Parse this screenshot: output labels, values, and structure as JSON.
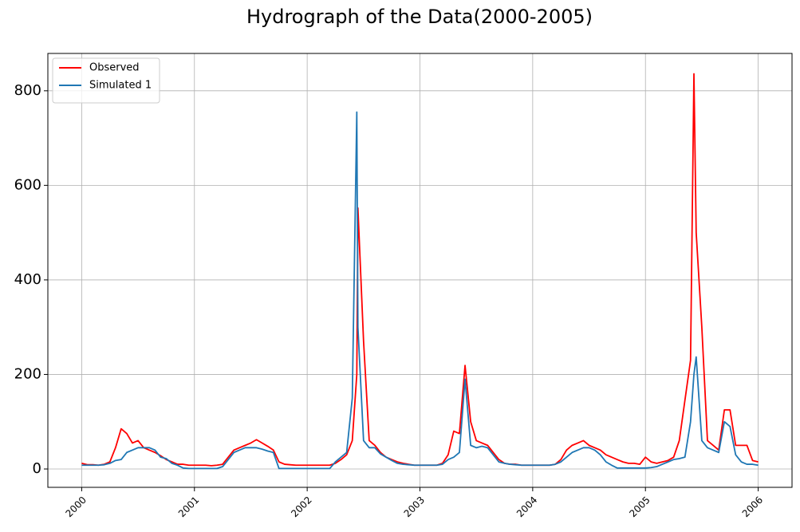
{
  "chart_data": {
    "type": "line",
    "title": "Hydrograph of the Data(2000-2005)",
    "x": [
      2000,
      2000.05,
      2000.1,
      2000.15,
      2000.2,
      2000.25,
      2000.3,
      2000.35,
      2000.4,
      2000.45,
      2000.5,
      2000.55,
      2000.6,
      2000.65,
      2000.7,
      2000.75,
      2000.8,
      2000.85,
      2000.9,
      2000.95,
      2001,
      2001.05,
      2001.1,
      2001.15,
      2001.2,
      2001.25,
      2001.3,
      2001.35,
      2001.4,
      2001.45,
      2001.5,
      2001.55,
      2001.6,
      2001.65,
      2001.7,
      2001.75,
      2001.8,
      2001.85,
      2001.9,
      2001.95,
      2002,
      2002.05,
      2002.1,
      2002.15,
      2002.2,
      2002.25,
      2002.3,
      2002.35,
      2002.4,
      2002.44,
      2002.45,
      2002.5,
      2002.55,
      2002.6,
      2002.65,
      2002.7,
      2002.75,
      2002.8,
      2002.85,
      2002.9,
      2002.95,
      2003,
      2003.05,
      2003.1,
      2003.15,
      2003.2,
      2003.25,
      2003.3,
      2003.35,
      2003.4,
      2003.45,
      2003.5,
      2003.55,
      2003.6,
      2003.65,
      2003.7,
      2003.75,
      2003.8,
      2003.85,
      2003.9,
      2003.95,
      2004,
      2004.05,
      2004.1,
      2004.15,
      2004.2,
      2004.25,
      2004.3,
      2004.35,
      2004.4,
      2004.45,
      2004.5,
      2004.55,
      2004.6,
      2004.65,
      2004.7,
      2004.75,
      2004.8,
      2004.85,
      2004.9,
      2004.95,
      2005,
      2005.05,
      2005.1,
      2005.15,
      2005.2,
      2005.25,
      2005.3,
      2005.35,
      2005.4,
      2005.43,
      2005.45,
      2005.5,
      2005.55,
      2005.6,
      2005.65,
      2005.7,
      2005.75,
      2005.8,
      2005.85,
      2005.9,
      2005.95,
      2006
    ],
    "series": [
      {
        "name": "Observed",
        "color": "#ff0000",
        "values": [
          12,
          9,
          9,
          8,
          10,
          15,
          45,
          85,
          75,
          55,
          60,
          45,
          40,
          35,
          28,
          20,
          15,
          10,
          10,
          8,
          8,
          8,
          8,
          7,
          8,
          10,
          25,
          40,
          45,
          50,
          55,
          62,
          55,
          48,
          40,
          15,
          10,
          9,
          8,
          8,
          8,
          8,
          8,
          8,
          8,
          12,
          20,
          30,
          60,
          200,
          552,
          270,
          60,
          50,
          35,
          25,
          20,
          15,
          12,
          10,
          8,
          8,
          8,
          8,
          8,
          12,
          30,
          80,
          75,
          219,
          100,
          60,
          55,
          50,
          35,
          20,
          12,
          10,
          10,
          8,
          8,
          8,
          8,
          8,
          8,
          10,
          20,
          40,
          50,
          55,
          60,
          50,
          45,
          40,
          30,
          25,
          20,
          15,
          12,
          12,
          10,
          25,
          15,
          12,
          15,
          18,
          25,
          60,
          145,
          230,
          836,
          500,
          300,
          60,
          50,
          40,
          125,
          125,
          50,
          50,
          50,
          18,
          15
        ]
      },
      {
        "name": "Simulated 1",
        "color": "#1f77b4",
        "values": [
          8,
          8,
          8,
          8,
          9,
          12,
          18,
          20,
          35,
          40,
          45,
          45,
          45,
          40,
          25,
          22,
          12,
          8,
          2,
          1,
          1,
          1,
          1,
          1,
          1,
          5,
          20,
          35,
          40,
          45,
          45,
          45,
          42,
          38,
          35,
          1,
          1,
          1,
          1,
          1,
          1,
          1,
          1,
          1,
          1,
          15,
          25,
          35,
          150,
          755,
          300,
          60,
          45,
          45,
          32,
          25,
          18,
          12,
          10,
          9,
          8,
          8,
          8,
          8,
          8,
          10,
          20,
          25,
          35,
          190,
          50,
          45,
          48,
          45,
          30,
          15,
          12,
          10,
          9,
          8,
          8,
          8,
          8,
          8,
          8,
          10,
          15,
          25,
          35,
          40,
          45,
          45,
          40,
          30,
          15,
          8,
          2,
          2,
          2,
          2,
          2,
          2,
          3,
          5,
          10,
          15,
          20,
          22,
          25,
          100,
          200,
          237,
          60,
          45,
          40,
          35,
          100,
          90,
          30,
          15,
          10,
          10,
          8
        ]
      }
    ],
    "xlim": [
      1999.7,
      2006.3
    ],
    "xticks": [
      2000,
      2001,
      2002,
      2003,
      2004,
      2005,
      2006
    ],
    "ylim": [
      -38.8,
      879
    ],
    "yticks": [
      0,
      200,
      400,
      600,
      800
    ],
    "grid": true,
    "legend": "upper-left"
  }
}
